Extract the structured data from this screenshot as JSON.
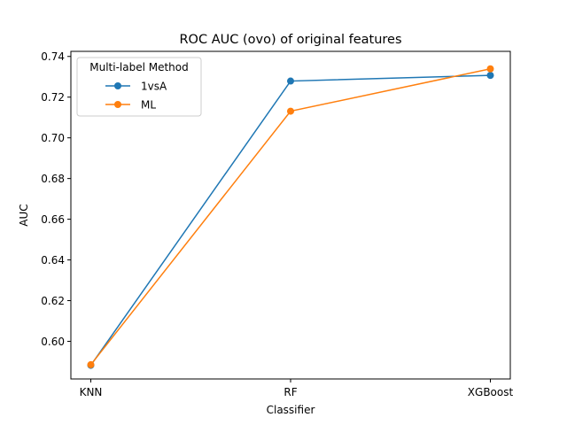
{
  "chart_data": {
    "type": "line",
    "title": "ROC AUC (ovo) of original features",
    "xlabel": "Classifier",
    "ylabel": "AUC",
    "categories": [
      "KNN",
      "RF",
      "XGBoost"
    ],
    "ylim": [
      0.5815,
      0.7425
    ],
    "yticks": [
      "0.60",
      "0.62",
      "0.64",
      "0.66",
      "0.68",
      "0.70",
      "0.72",
      "0.74"
    ],
    "legend": {
      "title": "Multi-label Method",
      "placement": "top-left"
    },
    "grid": false,
    "series": [
      {
        "name": "1vsA",
        "color": "#1f77b4",
        "values": [
          0.5882,
          0.7279,
          0.7307
        ]
      },
      {
        "name": "ML",
        "color": "#ff7f0e",
        "values": [
          0.5885,
          0.7131,
          0.7339
        ]
      }
    ]
  }
}
